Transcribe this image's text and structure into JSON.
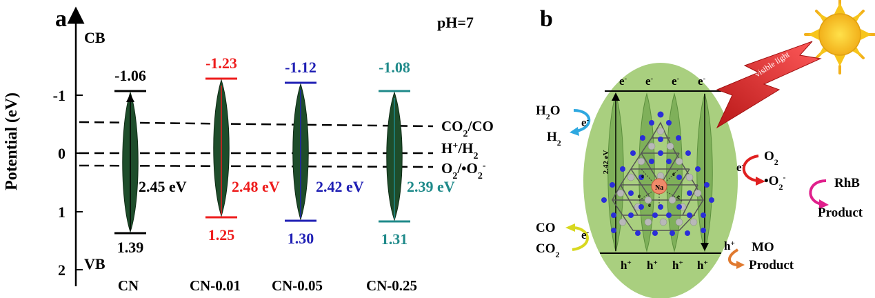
{
  "panel_a": {
    "label": "a",
    "ylabel": "Potential (eV)",
    "ph": "pH=7",
    "cb_label": "CB",
    "vb_label": "VB",
    "yticks": [
      "-1",
      "0",
      "1",
      "2"
    ],
    "levels": [
      {
        "label": "CO2/CO",
        "main": "CO",
        "sub": "2",
        "rest": "/CO"
      },
      {
        "label": "H+/H2",
        "main": "H",
        "sup": "+",
        "mid": "/H",
        "sub": "2"
      },
      {
        "label": "O2/•O2-",
        "main": "O",
        "sub": "2",
        "mid": "/•O",
        "sub2": "2",
        "sup": "-"
      }
    ],
    "samples": [
      {
        "name": "CN",
        "cb": "-1.06",
        "vb": "1.39",
        "gap": "2.45 eV",
        "color": "#000000"
      },
      {
        "name": "CN-0.01",
        "cb": "-1.23",
        "vb": "1.25",
        "gap": "2.48 eV",
        "color": "#ee1c1c"
      },
      {
        "name": "CN-0.05",
        "cb": "-1.12",
        "vb": "1.30",
        "gap": "2.42 eV",
        "color": "#1f1fb4"
      },
      {
        "name": "CN-0.25",
        "cb": "-1.08",
        "vb": "1.31",
        "gap": "2.39 eV",
        "color": "#1f8a8a"
      }
    ]
  },
  "panel_b": {
    "label": "b",
    "electron": "e",
    "hole": "h",
    "minus": "-",
    "plus": "+",
    "gap": "2.42 eV",
    "visible_light": "visible light",
    "na": "Na",
    "h2o": "H2O",
    "h2": "H2",
    "o2": "O2",
    "o2_radical": "•O2-",
    "rhb": "RhB",
    "product": "Product",
    "co": "CO",
    "co2": "CO2",
    "mo": "MO"
  },
  "colors": {
    "ellipse": "#a9cf7f",
    "spindle": "#1e4d2b",
    "sun": "#f7c51b",
    "lightning": "#e02020",
    "nitrogen": "#2b2ed8",
    "carbon": "#b8b8b8",
    "sodium": "#f08a6a"
  }
}
